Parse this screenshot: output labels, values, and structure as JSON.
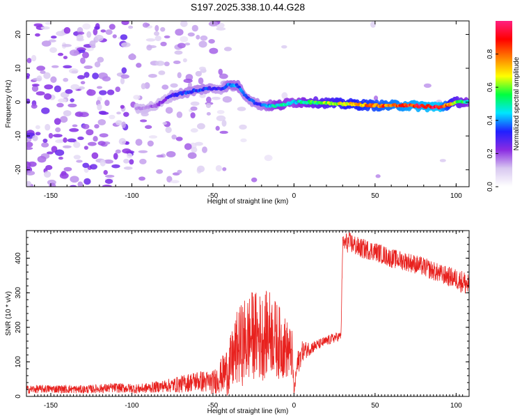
{
  "title": "S197.2025.338.10.44.G28",
  "colors": {
    "snr_line": "#e8211e",
    "axis": "#000000",
    "background": "#ffffff"
  },
  "chart_data": [
    {
      "type": "heatmap",
      "name": "spectrogram",
      "xlabel": "Height of straight line (km)",
      "ylabel": "Frequency (Hz)",
      "xlim": [
        -165,
        108
      ],
      "ylim": [
        -25,
        24
      ],
      "xticks": [
        -150,
        -100,
        -50,
        0,
        50,
        100
      ],
      "yticks": [
        -20,
        -10,
        0,
        10,
        20
      ],
      "colorbar": {
        "label": "Normalized spectral amplitude",
        "range": [
          0,
          1
        ],
        "ticks": [
          "0.0",
          "0.2",
          "0.4",
          "0.6",
          "0.8"
        ],
        "tick_values": [
          0.0,
          0.2,
          0.4,
          0.6,
          0.8
        ],
        "stops": [
          "#ffffff",
          "#d8c8f0",
          "#8a2be2",
          "#2020ff",
          "#00e5ff",
          "#00ff40",
          "#ffff00",
          "#ff8000",
          "#ff0000",
          "#ff2080"
        ]
      },
      "ridge": {
        "description_points_height_km": [
          -95,
          -85,
          -75,
          -65,
          -55,
          -45,
          -40,
          -35,
          -30,
          -25,
          -20,
          -10,
          0,
          10,
          30,
          50,
          70,
          90,
          100,
          107
        ],
        "frequency_hz": [
          -2,
          -1,
          2,
          3,
          4,
          4,
          5,
          5,
          2,
          0,
          -1,
          -1,
          0,
          0,
          -0.5,
          -1,
          -1,
          -1.5,
          0,
          0
        ],
        "amplitude": [
          0.15,
          0.2,
          0.3,
          0.35,
          0.35,
          0.3,
          0.4,
          0.4,
          0.35,
          0.35,
          0.35,
          0.5,
          0.45,
          0.55,
          0.7,
          0.8,
          0.9,
          0.95,
          0.6,
          0.5
        ]
      }
    },
    {
      "type": "line",
      "name": "snr",
      "xlabel": "Height of straight line (km)",
      "ylabel": "SNR (10 * v/v)",
      "xlim": [
        -165,
        108
      ],
      "ylim": [
        0,
        480
      ],
      "xticks": [
        -150,
        -100,
        -50,
        0,
        50,
        100
      ],
      "yticks": [
        0,
        100,
        200,
        300,
        400
      ],
      "series": [
        {
          "name": "SNR",
          "x": [
            -165,
            -150,
            -130,
            -110,
            -95,
            -80,
            -70,
            -60,
            -50,
            -45,
            -40,
            -35,
            -30,
            -25,
            -20,
            -15,
            -10,
            -5,
            -1,
            0,
            2,
            5,
            10,
            15,
            20,
            25,
            29,
            30,
            32,
            35,
            40,
            50,
            60,
            70,
            80,
            90,
            100,
            105,
            108
          ],
          "y": [
            20,
            22,
            20,
            25,
            22,
            30,
            35,
            45,
            40,
            60,
            80,
            140,
            160,
            180,
            170,
            190,
            160,
            140,
            120,
            10,
            90,
            130,
            140,
            150,
            160,
            170,
            175,
            440,
            445,
            445,
            430,
            420,
            400,
            390,
            375,
            355,
            340,
            330,
            320
          ],
          "band_amplitude": [
            12,
            12,
            12,
            14,
            14,
            18,
            25,
            30,
            35,
            50,
            80,
            110,
            130,
            130,
            130,
            120,
            110,
            90,
            70,
            5,
            40,
            30,
            20,
            15,
            15,
            15,
            12,
            25,
            30,
            30,
            30,
            28,
            28,
            28,
            28,
            28,
            30,
            35,
            40
          ]
        }
      ]
    }
  ]
}
